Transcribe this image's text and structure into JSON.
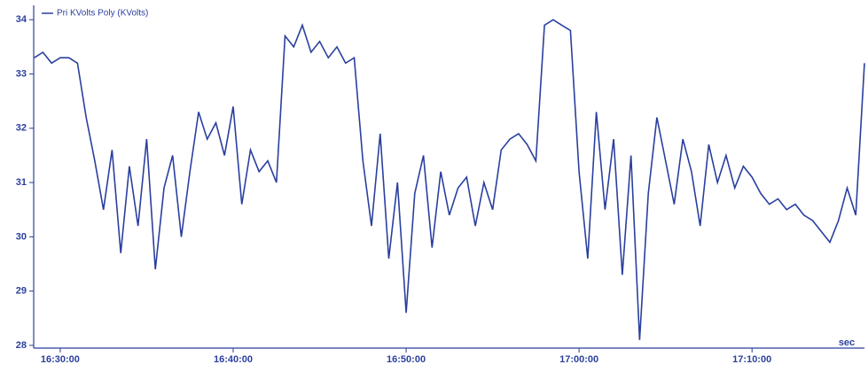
{
  "chart_data": {
    "type": "line",
    "x_label": "sec",
    "x": [
      59310,
      59340,
      59370,
      59400,
      59430,
      59460,
      59490,
      59520,
      59550,
      59580,
      59610,
      59640,
      59670,
      59700,
      59730,
      59760,
      59790,
      59820,
      59850,
      59880,
      59910,
      59940,
      59970,
      60000,
      60030,
      60060,
      60090,
      60120,
      60150,
      60180,
      60210,
      60240,
      60270,
      60300,
      60330,
      60360,
      60390,
      60420,
      60450,
      60480,
      60510,
      60540,
      60570,
      60600,
      60630,
      60660,
      60690,
      60720,
      60750,
      60780,
      60810,
      60840,
      60870,
      60900,
      60930,
      60960,
      60990,
      61020,
      61050,
      61080,
      61110,
      61140,
      61170,
      61200,
      61230,
      61260,
      61290,
      61320,
      61350,
      61380,
      61410,
      61440,
      61470,
      61500,
      61530,
      61560,
      61590,
      61620,
      61650,
      61680,
      61710,
      61740,
      61770,
      61800,
      61830,
      61860,
      61890,
      61920,
      61950,
      61980,
      62010,
      62040,
      62070,
      62100,
      62130,
      62160,
      62190
    ],
    "series": [
      {
        "name": "Pri KVolts Poly (KVolts)",
        "color": "#2a3f9e",
        "values": [
          33.3,
          33.4,
          33.2,
          33.3,
          33.3,
          33.2,
          32.2,
          31.4,
          30.5,
          31.6,
          29.7,
          31.3,
          30.2,
          31.8,
          29.4,
          30.9,
          31.5,
          30.0,
          31.2,
          32.3,
          31.8,
          32.1,
          31.5,
          32.4,
          30.6,
          31.6,
          31.2,
          31.4,
          31.0,
          33.7,
          33.5,
          33.9,
          33.4,
          33.6,
          33.3,
          33.5,
          33.2,
          33.3,
          31.4,
          30.2,
          31.9,
          29.6,
          31.0,
          28.6,
          30.8,
          31.5,
          29.8,
          31.2,
          30.4,
          30.9,
          31.1,
          30.2,
          31.0,
          30.5,
          31.6,
          31.8,
          31.9,
          31.7,
          31.4,
          33.9,
          34.0,
          33.9,
          33.8,
          31.2,
          29.6,
          32.3,
          30.5,
          31.8,
          29.3,
          31.5,
          28.1,
          30.8,
          32.2,
          31.4,
          30.6,
          31.8,
          31.2,
          30.2,
          31.7,
          31.0,
          31.5,
          30.9,
          31.3,
          31.1,
          30.8,
          30.6,
          30.7,
          30.5,
          30.6,
          30.4,
          30.3,
          30.1,
          29.9,
          30.3,
          30.9,
          30.4,
          33.2
        ]
      }
    ],
    "xlim": [
      59308,
      62190
    ],
    "xticks": [
      {
        "value": 59400,
        "label": "16:30:00"
      },
      {
        "value": 60000,
        "label": "16:40:00"
      },
      {
        "value": 60600,
        "label": "16:50:00"
      },
      {
        "value": 61200,
        "label": "17:00:00"
      },
      {
        "value": 61800,
        "label": "17:10:00"
      }
    ],
    "ylim": [
      27.95,
      34.2
    ],
    "yticks": [
      28,
      29,
      30,
      31,
      32,
      33,
      34
    ]
  }
}
